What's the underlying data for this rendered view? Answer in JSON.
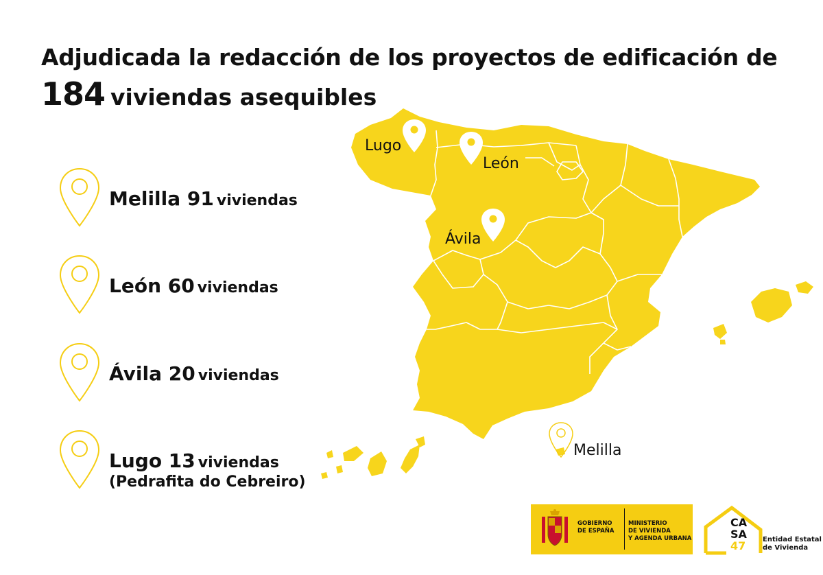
{
  "header": {
    "title_line1": "Adjudicada la redacción de los proyectos de edificación de",
    "title_number": "184",
    "title_rest": "viviendas asequibles"
  },
  "list": [
    {
      "place": "Melilla 91",
      "suffix": "viviendas",
      "sub": ""
    },
    {
      "place": "León 60",
      "suffix": "viviendas",
      "sub": ""
    },
    {
      "place": "Ávila 20",
      "suffix": "viviendas",
      "sub": ""
    },
    {
      "place": "Lugo 13",
      "suffix": "viviendas",
      "sub": "(Pedrafita do Cebreiro)"
    }
  ],
  "map": {
    "fill_color": "#f7d51c",
    "border_color": "#ffffff",
    "labels": {
      "lugo": "Lugo",
      "leon": "León",
      "avila": "Ávila",
      "melilla": "Melilla"
    }
  },
  "footer": {
    "gobierno": "GOBIERNO\nDE ESPAÑA",
    "ministerio": "MINISTERIO\nDE VIVIENDA\nY AGENDA URBANA",
    "casa_line1": "CA",
    "casa_line2": "SA",
    "casa_line3": "47",
    "entidad": "Entidad Estatal\nde Vivienda"
  },
  "colors": {
    "accent": "#f5cd12",
    "text": "#111111"
  }
}
